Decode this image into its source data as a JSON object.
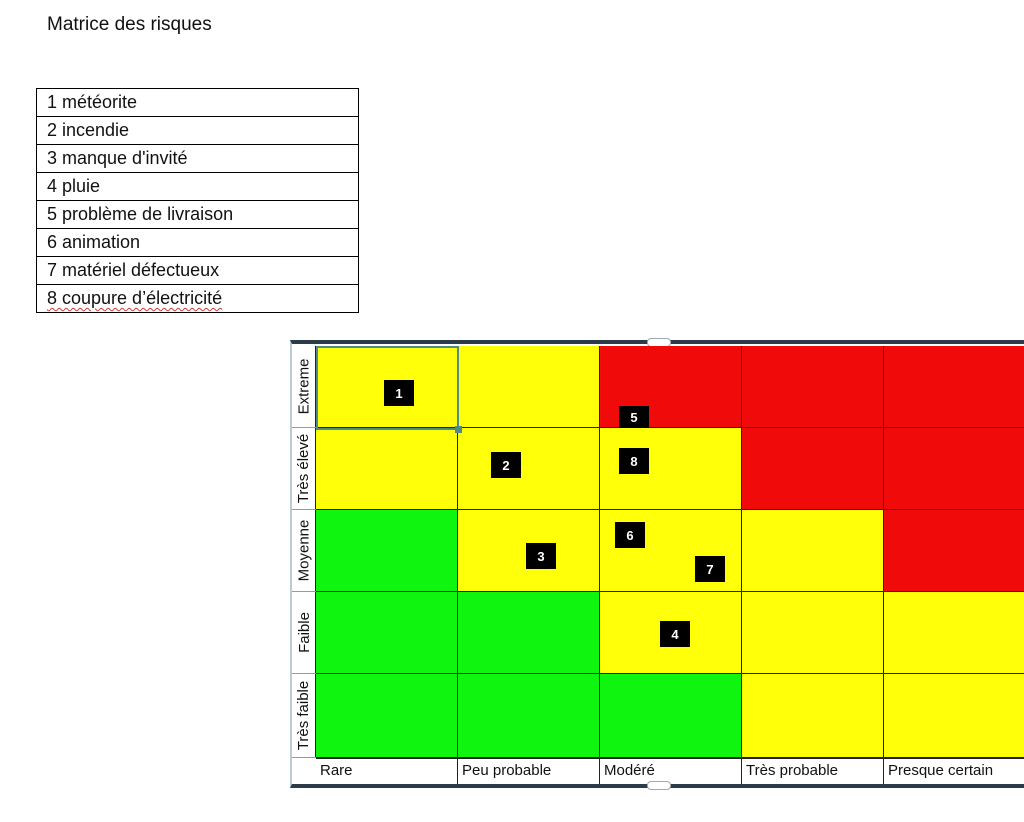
{
  "title": "Matrice des risques",
  "risk_list": [
    "1 météorite",
    "2 incendie",
    "3 manque d'invité",
    "4 pluie",
    "5 problème  de livraison",
    "6 animation",
    "7 matériel défectueux",
    "8 coupure d’électricité"
  ],
  "matrix": {
    "row_labels": [
      "Extreme",
      "Très élevé",
      "Moyenne",
      "Faible",
      "Très faible"
    ],
    "col_labels": [
      "Rare",
      "Peu probable",
      "Modéré",
      "Très probable",
      "Presque certain"
    ],
    "cell_colors": [
      [
        "yellow",
        "yellow",
        "red",
        "red",
        "red"
      ],
      [
        "yellow",
        "yellow",
        "yellow",
        "red",
        "red"
      ],
      [
        "green",
        "yellow",
        "yellow",
        "yellow",
        "red"
      ],
      [
        "green",
        "green",
        "yellow",
        "yellow",
        "yellow"
      ],
      [
        "green",
        "green",
        "green",
        "yellow",
        "yellow"
      ]
    ],
    "markers": [
      "1",
      "2",
      "3",
      "4",
      "5",
      "6",
      "7",
      "8"
    ]
  },
  "colors": {
    "green": "#10f510",
    "yellow": "#ffff0a",
    "red": "#f00a0a"
  }
}
